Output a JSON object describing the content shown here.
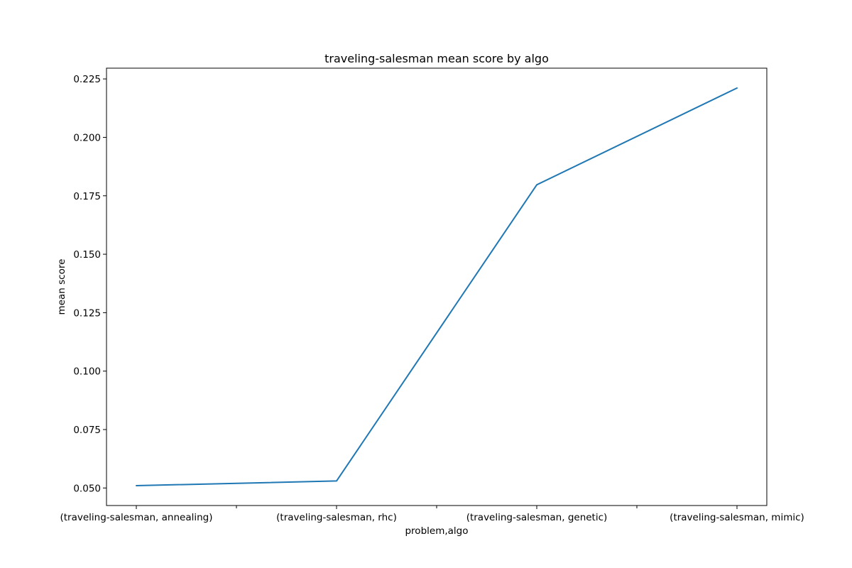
{
  "chart_data": {
    "type": "line",
    "title": "traveling-salesman mean score by algo",
    "xlabel": "problem,algo",
    "ylabel": "mean score",
    "categories": [
      "(traveling-salesman, annealing)",
      "(traveling-salesman, rhc)",
      "(traveling-salesman, genetic)",
      "(traveling-salesman, mimic)"
    ],
    "values": [
      0.051,
      0.053,
      0.1797,
      0.2211
    ],
    "ylim": [
      0.0425,
      0.2296
    ],
    "yticks": [
      0.05,
      0.075,
      0.1,
      0.125,
      0.15,
      0.175,
      0.2,
      0.225
    ],
    "ytick_labels": [
      "0.050",
      "0.075",
      "0.100",
      "0.125",
      "0.150",
      "0.175",
      "0.200",
      "0.225"
    ],
    "grid": false,
    "line_color": "#1f77b4"
  }
}
